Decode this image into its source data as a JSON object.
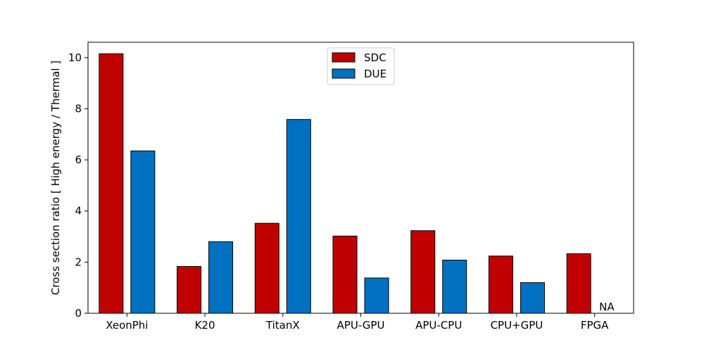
{
  "chart_data": {
    "type": "bar",
    "title": "",
    "xlabel": "",
    "ylabel": "Cross section ratio [ High energy / Thermal ]",
    "ylim": [
      0,
      10.6
    ],
    "yticks": [
      0,
      2,
      4,
      6,
      8,
      10
    ],
    "categories": [
      "XeonPhi",
      "K20",
      "TitanX",
      "APU-GPU",
      "APU-CPU",
      "CPU+GPU",
      "FPGA"
    ],
    "series": [
      {
        "name": "SDC",
        "color": "#c00000",
        "values": [
          10.15,
          1.83,
          3.52,
          3.02,
          3.23,
          2.24,
          2.33
        ]
      },
      {
        "name": "DUE",
        "color": "#0070c0",
        "values": [
          6.35,
          2.8,
          7.58,
          1.38,
          2.08,
          1.2,
          null
        ]
      }
    ],
    "annotations": [
      {
        "category": "FPGA",
        "series": "DUE",
        "text": "NA"
      }
    ],
    "legend": {
      "placement": "top-center"
    },
    "grid": false
  }
}
